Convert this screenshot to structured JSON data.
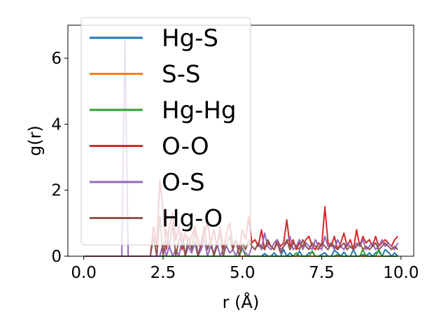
{
  "chart_data": {
    "type": "line",
    "xlabel": "r (Å)",
    "ylabel": "g(r)",
    "xlim": [
      -0.5,
      10.4
    ],
    "ylim": [
      0,
      7
    ],
    "xticks": [
      {
        "value": 0.0,
        "label": "0.0"
      },
      {
        "value": 2.5,
        "label": "2.5"
      },
      {
        "value": 5.0,
        "label": "5.0"
      },
      {
        "value": 7.5,
        "label": "7.5"
      },
      {
        "value": 10.0,
        "label": "10.0"
      }
    ],
    "yticks": [
      {
        "value": 0,
        "label": "0"
      },
      {
        "value": 2,
        "label": "2"
      },
      {
        "value": 4,
        "label": "4"
      },
      {
        "value": 6,
        "label": "6"
      }
    ],
    "legend_position": "upper-left",
    "grid": false,
    "x": [
      0.0,
      0.2,
      0.4,
      0.6,
      0.8,
      1.0,
      1.2,
      1.3,
      1.4,
      1.5,
      1.6,
      1.8,
      2.0,
      2.1,
      2.2,
      2.3,
      2.4,
      2.5,
      2.6,
      2.7,
      2.8,
      2.9,
      3.0,
      3.1,
      3.2,
      3.3,
      3.4,
      3.5,
      3.6,
      3.7,
      3.8,
      3.9,
      4.0,
      4.1,
      4.2,
      4.3,
      4.4,
      4.5,
      4.6,
      4.7,
      4.8,
      4.9,
      5.0,
      5.1,
      5.2,
      5.3,
      5.4,
      5.5,
      5.6,
      5.7,
      5.8,
      5.9,
      6.0,
      6.1,
      6.2,
      6.3,
      6.4,
      6.5,
      6.6,
      6.7,
      6.8,
      6.9,
      7.0,
      7.1,
      7.2,
      7.3,
      7.4,
      7.5,
      7.6,
      7.7,
      7.8,
      7.9,
      8.0,
      8.1,
      8.2,
      8.3,
      8.4,
      8.5,
      8.6,
      8.7,
      8.8,
      8.9,
      9.0,
      9.1,
      9.2,
      9.3,
      9.4,
      9.5,
      9.6,
      9.7,
      9.8,
      9.9
    ],
    "series": [
      {
        "name": "Hg-S",
        "color": "#1f77b4",
        "values": [
          0,
          0,
          0,
          0,
          0,
          0,
          0,
          0,
          0,
          0,
          0,
          0,
          0,
          0,
          0,
          0,
          0,
          0,
          0,
          0,
          0,
          0,
          0,
          0,
          0,
          0,
          0,
          0,
          0,
          0,
          0,
          0,
          0,
          0,
          0,
          0,
          0,
          0,
          0,
          0,
          0,
          0,
          0,
          0,
          0,
          0,
          0,
          0,
          0,
          0.08,
          0,
          0,
          0.1,
          0,
          0,
          0.2,
          0,
          0.1,
          0,
          0,
          0.15,
          0,
          0,
          0.1,
          0.12,
          0,
          0,
          0.05,
          0.1,
          0,
          0,
          0.18,
          0.1,
          0,
          0.12,
          0,
          0,
          0.2,
          0,
          0,
          0.05,
          0,
          0.1,
          0,
          0.1,
          0.15,
          0,
          0.2,
          0.12,
          0,
          0.1,
          0
        ]
      },
      {
        "name": "S-S",
        "color": "#ff7f0e",
        "values": [
          0,
          0,
          0,
          0,
          0,
          0,
          0,
          0,
          0,
          0,
          0,
          0,
          0,
          0,
          0,
          0,
          0,
          0,
          0,
          0,
          0,
          0,
          0,
          0,
          0,
          0,
          0,
          0,
          0,
          0,
          0,
          0,
          0,
          0,
          0,
          0,
          0,
          0,
          0,
          0,
          0,
          0,
          0,
          0,
          0,
          0,
          0,
          0,
          0,
          0,
          0,
          0,
          0,
          0,
          0,
          0,
          0,
          0,
          0,
          0,
          0,
          0,
          0,
          0,
          0,
          0,
          0,
          0,
          0,
          0,
          0,
          0,
          0,
          0,
          0,
          0,
          0,
          0,
          0,
          0,
          0,
          0,
          0,
          0,
          0,
          0,
          0,
          0,
          0,
          0,
          0,
          0
        ]
      },
      {
        "name": "Hg-Hg",
        "color": "#2ca02c",
        "values": [
          0,
          0,
          0,
          0,
          0,
          0,
          0,
          0,
          0,
          0,
          0,
          0,
          0,
          0,
          0,
          0,
          0,
          0,
          0,
          0,
          0,
          0,
          0,
          0,
          0,
          0,
          0,
          0,
          0,
          0,
          0,
          0,
          0,
          0,
          0,
          0,
          0,
          0,
          0,
          0,
          0,
          0,
          0.25,
          0,
          0,
          0,
          0,
          0,
          0,
          0,
          0,
          0,
          0,
          0,
          0,
          0,
          0,
          0,
          0,
          0.1,
          0,
          0,
          0,
          0,
          0.15,
          0,
          0,
          0,
          0,
          0,
          0,
          0,
          0.05,
          0,
          0,
          0,
          0,
          0,
          0,
          0,
          0.2,
          0,
          0,
          0,
          0,
          0.2,
          0,
          0,
          0,
          0,
          0,
          0
        ]
      },
      {
        "name": "O-O",
        "color": "#d62728",
        "values": [
          0,
          0,
          0,
          0,
          0,
          0,
          0,
          0,
          0,
          0,
          0,
          0,
          0,
          0,
          0.9,
          0.3,
          2.3,
          1.4,
          0.2,
          0.9,
          1.3,
          0.5,
          0.9,
          0.2,
          0.7,
          0.3,
          0.6,
          0.9,
          0.5,
          0.2,
          0.7,
          1.0,
          0.4,
          0.8,
          0.3,
          0.9,
          0.2,
          0.7,
          1.0,
          0.3,
          0.5,
          0.2,
          0.8,
          0.5,
          1.2,
          0.4,
          0.5,
          0.3,
          0.8,
          0.2,
          0.4,
          0.3,
          0.2,
          0.5,
          0.3,
          0.4,
          1.1,
          0.3,
          0.5,
          0.2,
          0.4,
          0.3,
          0.5,
          0.6,
          0.3,
          0.2,
          0.4,
          0.3,
          1.5,
          0.4,
          0.3,
          0.6,
          0.2,
          0.4,
          0.7,
          0.3,
          0.5,
          0.2,
          0.8,
          0.3,
          0.6,
          0.4,
          0.5,
          0.3,
          0.6,
          0.3,
          0.4,
          0.5,
          0.4,
          0.3,
          0.5,
          0.6
        ]
      },
      {
        "name": "O-S",
        "color": "#9467bd",
        "values": [
          0,
          0,
          0,
          0,
          0,
          0,
          0,
          6.6,
          0,
          0,
          0,
          0,
          0,
          0,
          0,
          0,
          0,
          0.4,
          0,
          0.3,
          0,
          0.2,
          0,
          0.5,
          0,
          0.3,
          0.1,
          0.4,
          0,
          0.2,
          0.5,
          0,
          0.3,
          0.1,
          0.4,
          0,
          0.2,
          0.3,
          0.1,
          0.2,
          0,
          0.3,
          0.2,
          0.1,
          0,
          0.3,
          0.2,
          0.4,
          0.2,
          0.7,
          0.3,
          0.2,
          0.4,
          0.5,
          0.2,
          0.3,
          0.4,
          0.6,
          0.2,
          0.3,
          0.5,
          0.2,
          0.4,
          0.3,
          0.2,
          0.5,
          0.3,
          0.2,
          0.6,
          0.3,
          0.4,
          0.2,
          0.5,
          0.3,
          0.2,
          0.4,
          0.3,
          0.2,
          0.4,
          0.3,
          0.5,
          0.2,
          0.3,
          0.4,
          0.2,
          0.3,
          0.5,
          0.3,
          0.4,
          0.3,
          0.2,
          0.4
        ]
      },
      {
        "name": "Hg-O",
        "color": "#8c564b",
        "values": [
          0,
          0,
          0,
          0,
          0,
          0,
          0,
          0,
          0,
          0,
          0,
          0,
          0,
          0,
          0.6,
          0,
          1.2,
          0,
          0.8,
          0.3,
          1.0,
          0,
          0.5,
          0.7,
          0,
          0.6,
          0.2,
          0.8,
          0,
          0.4,
          0.9,
          0.2,
          0.5,
          0,
          0.3,
          0.7,
          0,
          0.4,
          0.6,
          0.2,
          0.5,
          0,
          0.4,
          0.2,
          0.5,
          0.3,
          0.2,
          0.4,
          0.3,
          0.2,
          0.5,
          0.3,
          0.2,
          0.4,
          0.1,
          0.3,
          0.5,
          0.2,
          0.4,
          0.3,
          0.2,
          0.5,
          0.3,
          0.2,
          0.4,
          0.3,
          0.2,
          0.4,
          0.3,
          0.2,
          0.4,
          0.3,
          0.2,
          0.3,
          0.4,
          0.2,
          0.3,
          0.2,
          0.3,
          0.4,
          0.2,
          0.3,
          0.2,
          0.3,
          0.4,
          0.2,
          0.3,
          0.4,
          0.3,
          0.2,
          0.3,
          0.2
        ]
      }
    ]
  }
}
